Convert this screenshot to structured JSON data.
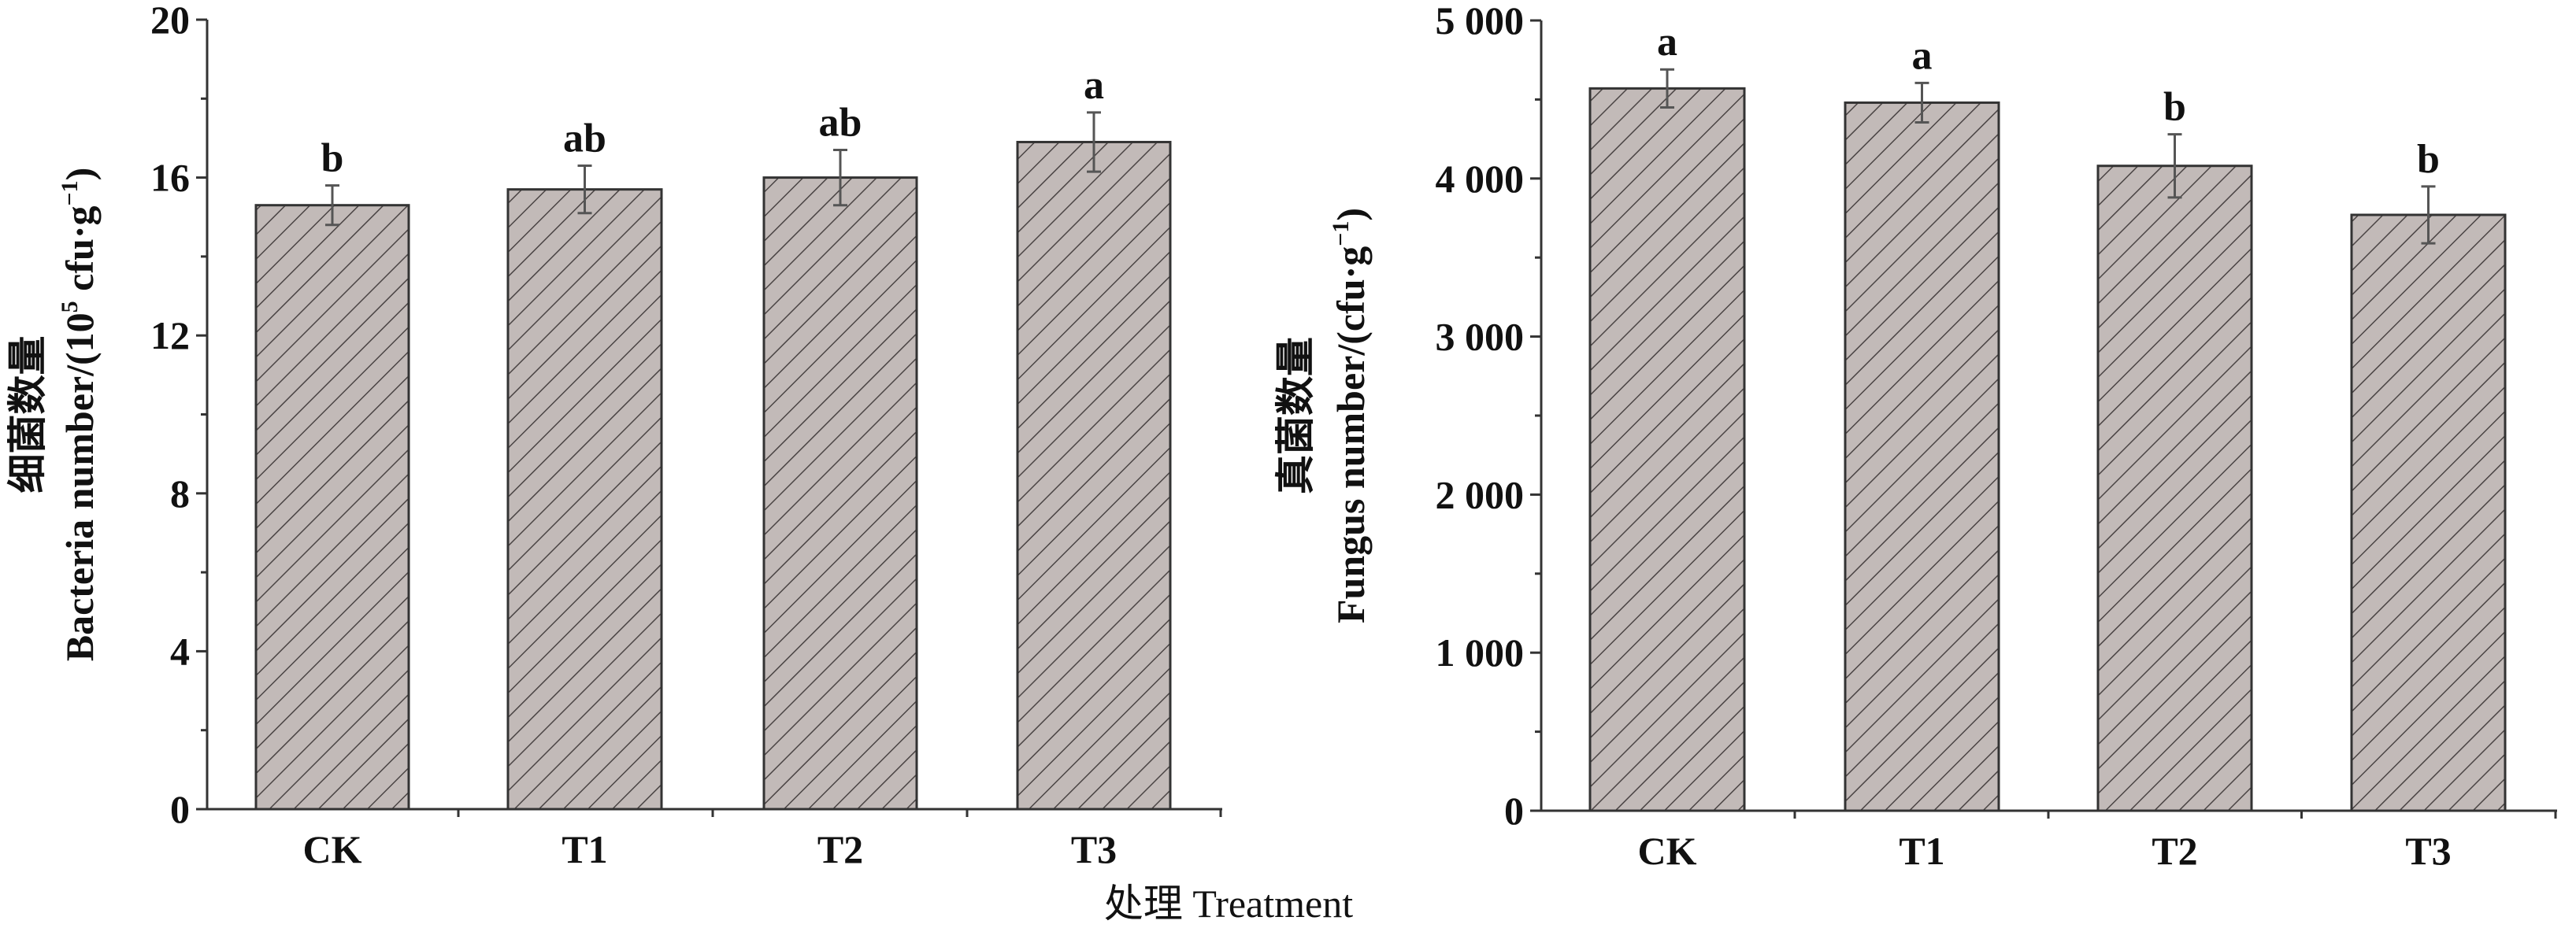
{
  "xlabel": "处理  Treatment",
  "colors": {
    "bar_fill": "#c2bab8",
    "hatch": "#4a4444",
    "axis": "#333333",
    "error_bar": "#555555"
  },
  "chart_data": [
    {
      "type": "bar",
      "categories": [
        "CK",
        "T1",
        "T2",
        "T3"
      ],
      "values": [
        15.3,
        15.7,
        16.0,
        16.9
      ],
      "errors": [
        0.5,
        0.6,
        0.7,
        0.75
      ],
      "significance_letters": [
        "b",
        "ab",
        "ab",
        "a"
      ],
      "ylabel_line1": "细菌数量",
      "ylabel_line2": "Bacteria number/(10",
      "ylabel_sup": "5",
      "ylabel_line2b": " cfu·g",
      "ylabel_sup2": "−1",
      "ylabel_end": ")",
      "ylim": [
        0,
        20
      ],
      "yticks": [
        0,
        4,
        8,
        12,
        16,
        20
      ],
      "ytick_labels": [
        "0",
        "4",
        "8",
        "12",
        "16",
        "20"
      ],
      "pattern": "diagonal-hatch",
      "grid": false
    },
    {
      "type": "bar",
      "categories": [
        "CK",
        "T1",
        "T2",
        "T3"
      ],
      "values": [
        4570,
        4480,
        4080,
        3770
      ],
      "errors": [
        120,
        125,
        200,
        180
      ],
      "significance_letters": [
        "a",
        "a",
        "b",
        "b"
      ],
      "ylabel_line1": "真菌数量",
      "ylabel_line2": "Fungus number/(cfu·g",
      "ylabel_sup": "−1",
      "ylabel_end": ")",
      "ylim": [
        0,
        5000
      ],
      "yticks": [
        0,
        1000,
        2000,
        3000,
        4000,
        5000
      ],
      "ytick_labels": [
        "0",
        "1 000",
        "2 000",
        "3 000",
        "4 000",
        "5 000"
      ],
      "pattern": "diagonal-hatch",
      "grid": false
    }
  ]
}
